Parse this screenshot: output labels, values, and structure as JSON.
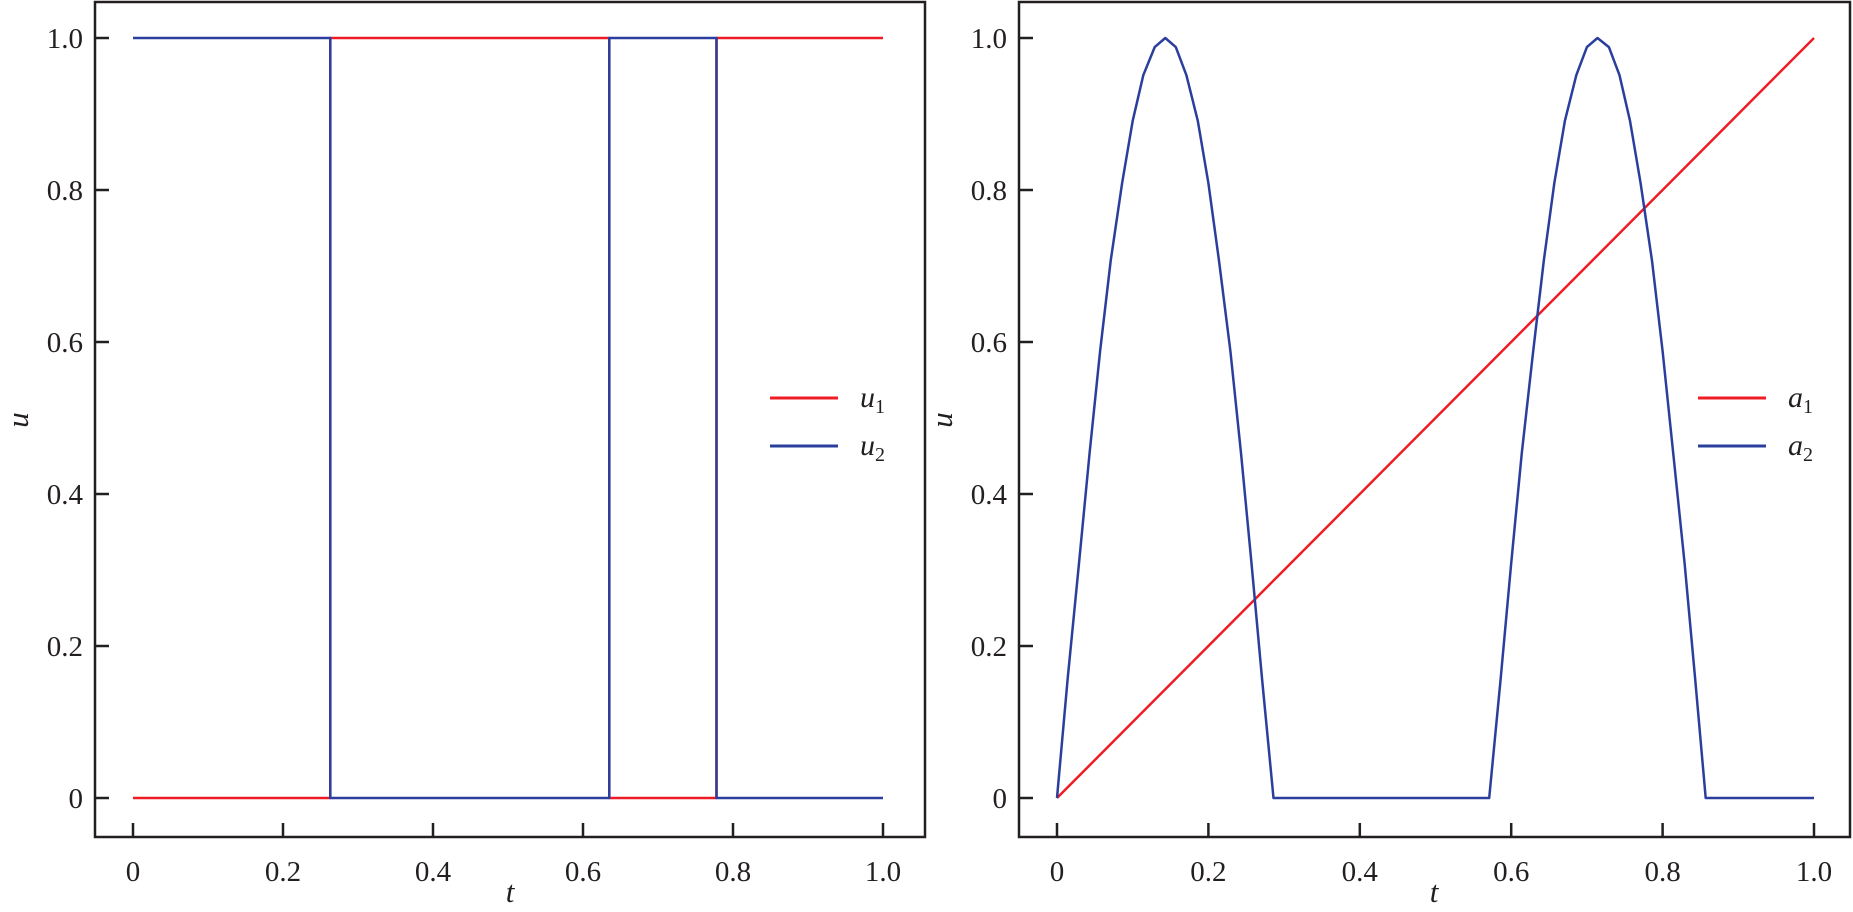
{
  "colors": {
    "red": "#ee1c24",
    "blue": "#2a3f9d",
    "axis": "#231f20"
  },
  "chart_data": [
    {
      "type": "line",
      "xlabel": "t",
      "ylabel": "u",
      "xlim": [
        0,
        1
      ],
      "ylim": [
        0,
        1
      ],
      "xticks": [
        "0",
        "0.2",
        "0.4",
        "0.6",
        "0.8",
        "1.0"
      ],
      "yticks": [
        "0",
        "0.2",
        "0.4",
        "0.6",
        "0.8",
        "1.0"
      ],
      "grid": false,
      "legend_placement": "center-right",
      "series": [
        {
          "name": "u",
          "sub": "1",
          "color": "#ee1c24",
          "step": true,
          "x": [
            0,
            0.263,
            0.263,
            0.635,
            0.635,
            0.778,
            0.778,
            1.0
          ],
          "y": [
            0,
            0,
            1,
            1,
            0,
            0,
            1,
            1
          ]
        },
        {
          "name": "u",
          "sub": "2",
          "color": "#2a3f9d",
          "step": true,
          "x": [
            0,
            0.263,
            0.263,
            0.635,
            0.635,
            0.778,
            0.778,
            1.0
          ],
          "y": [
            1,
            1,
            0,
            0,
            1,
            1,
            0,
            0
          ]
        }
      ]
    },
    {
      "type": "line",
      "xlabel": "t",
      "ylabel": "u",
      "xlim": [
        0,
        1
      ],
      "ylim": [
        0,
        1
      ],
      "xticks": [
        "0",
        "0.2",
        "0.4",
        "0.6",
        "0.8",
        "1.0"
      ],
      "yticks": [
        "0",
        "0.2",
        "0.4",
        "0.6",
        "0.8",
        "1.0"
      ],
      "grid": false,
      "legend_placement": "center-right",
      "series": [
        {
          "name": "a",
          "sub": "1",
          "color": "#ee1c24",
          "x": [
            0,
            1.0
          ],
          "y": [
            0,
            1.0
          ]
        },
        {
          "name": "a",
          "sub": "2",
          "color": "#2a3f9d",
          "x": [
            0,
            0.014,
            0.029,
            0.043,
            0.057,
            0.071,
            0.086,
            0.1,
            0.114,
            0.129,
            0.143,
            0.157,
            0.171,
            0.186,
            0.2,
            0.214,
            0.229,
            0.243,
            0.257,
            0.271,
            0.286,
            0.571,
            0.586,
            0.6,
            0.614,
            0.629,
            0.643,
            0.657,
            0.671,
            0.686,
            0.7,
            0.714,
            0.729,
            0.743,
            0.757,
            0.771,
            0.786,
            0.8,
            0.814,
            0.829,
            0.843,
            0.857,
            1.0
          ],
          "y": [
            0,
            0.156,
            0.309,
            0.454,
            0.588,
            0.707,
            0.809,
            0.891,
            0.951,
            0.988,
            1,
            0.988,
            0.951,
            0.891,
            0.809,
            0.707,
            0.588,
            0.454,
            0.309,
            0.156,
            0,
            0,
            0.156,
            0.309,
            0.454,
            0.588,
            0.707,
            0.809,
            0.891,
            0.951,
            0.988,
            1,
            0.988,
            0.951,
            0.891,
            0.809,
            0.707,
            0.588,
            0.454,
            0.309,
            0.156,
            0,
            0
          ]
        }
      ]
    }
  ]
}
